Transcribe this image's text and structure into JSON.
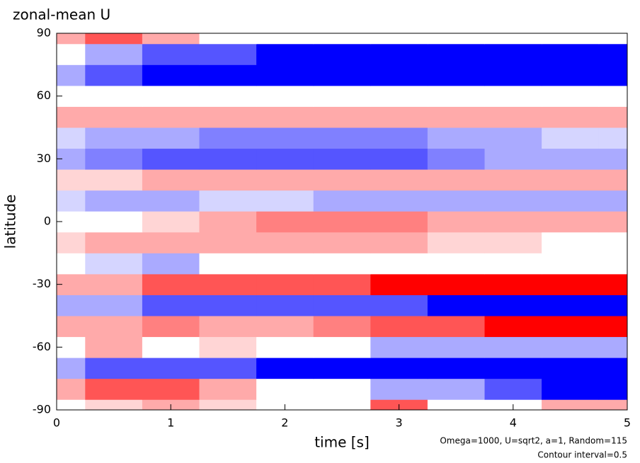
{
  "chart_data": {
    "type": "contour",
    "title": "zonal-mean U",
    "x_label": "time [s]",
    "y_label": "latitude",
    "annotations": [
      "Omega=1000, U=sqrt2, a=1, Random=115",
      "Contour interval=0.5"
    ],
    "x": [
      0,
      0.5,
      1,
      1.5,
      2,
      2.5,
      3,
      3.5,
      4,
      4.5,
      5
    ],
    "y": [
      -90,
      -80,
      -70,
      -60,
      -50,
      -40,
      -30,
      -20,
      -10,
      0,
      10,
      20,
      30,
      40,
      50,
      60,
      70,
      80,
      90
    ],
    "z": [
      [
        0,
        0.5,
        1,
        0.5,
        0,
        0,
        2,
        0,
        0,
        1,
        1
      ],
      [
        1,
        2,
        2,
        1,
        0,
        0,
        -1,
        -1,
        -2,
        -3,
        -3
      ],
      [
        -1,
        -2,
        -2,
        -2,
        -3,
        -3,
        -4,
        -5,
        -6,
        -6,
        -6
      ],
      [
        0,
        1,
        0,
        0.5,
        0,
        0,
        -1,
        -1,
        -1,
        -1,
        -1
      ],
      [
        1,
        1,
        1.5,
        1,
        1,
        1.5,
        2,
        2,
        3,
        3,
        3
      ],
      [
        -1,
        -1,
        -2,
        -2,
        -2,
        -2,
        -2,
        -3,
        -3,
        -3,
        -3
      ],
      [
        1,
        1,
        2,
        2,
        2,
        2,
        3,
        3,
        3,
        3,
        3
      ],
      [
        0,
        -0.5,
        -1,
        0,
        0,
        0,
        0,
        0,
        0,
        0,
        0
      ],
      [
        0.5,
        1,
        1,
        1,
        1,
        1,
        1,
        0.5,
        0.5,
        0,
        0
      ],
      [
        0,
        0,
        0.5,
        1,
        1.5,
        1.5,
        1.5,
        1,
        1,
        1,
        1
      ],
      [
        -0.5,
        -1,
        -1,
        -0.5,
        -0.5,
        -1,
        -1,
        -1,
        -1,
        -1,
        -1
      ],
      [
        0.5,
        0.5,
        1,
        1,
        1,
        1,
        1,
        1,
        1,
        1,
        1
      ],
      [
        -1,
        -1.5,
        -2,
        -2,
        -2,
        -2,
        -2,
        -1.5,
        -1,
        -1,
        -1
      ],
      [
        -0.5,
        -1,
        -1,
        -1.5,
        -1.5,
        -1.5,
        -1.5,
        -1,
        -1,
        -0.5,
        -0.5
      ],
      [
        1,
        1,
        1,
        1,
        1,
        1,
        1,
        1,
        1,
        1,
        1
      ],
      [
        0,
        0,
        0,
        0,
        0,
        0,
        0,
        0,
        0,
        0,
        0
      ],
      [
        -1,
        -2,
        -3,
        -3,
        -4,
        -5,
        -5,
        -6,
        -6,
        -6,
        -6
      ],
      [
        0,
        -1,
        -2,
        -2,
        -3,
        -3,
        -3,
        -3,
        -3,
        -3,
        -3
      ],
      [
        1,
        2,
        1,
        0,
        0,
        0,
        0,
        0,
        0,
        0,
        0
      ]
    ],
    "colors": {
      "negative": "#0000ff",
      "zero": "#ffffff",
      "positive": "#ff0000"
    },
    "zlim": [
      -3,
      3
    ],
    "xlim": [
      0,
      5
    ],
    "xticks": [
      0,
      1,
      2,
      3,
      4,
      5
    ],
    "ylim": [
      -90,
      90
    ],
    "yticks": [
      -90,
      -60,
      -30,
      0,
      30,
      60,
      90
    ]
  }
}
